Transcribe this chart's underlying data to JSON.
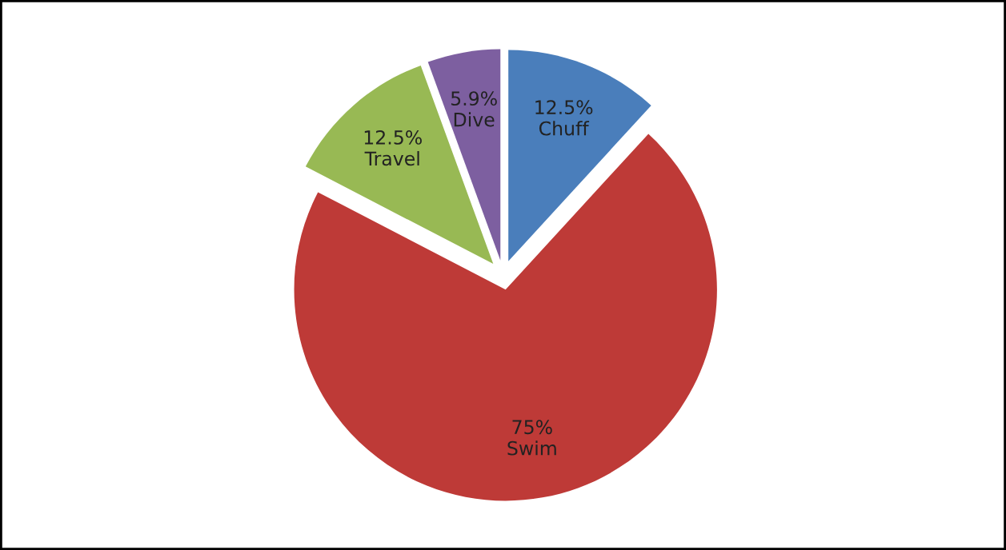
{
  "chart_data": {
    "type": "pie",
    "categories": [
      "Chuff",
      "Swim",
      "Travel",
      "Dive"
    ],
    "values": [
      12.5,
      75,
      12.5,
      5.9
    ],
    "value_labels": [
      "12.5%",
      "75%",
      "12.5%",
      "5.9%"
    ],
    "colors": [
      "#4a7ebb",
      "#be3a37",
      "#98b954",
      "#7d5fa0"
    ],
    "legend": false
  }
}
